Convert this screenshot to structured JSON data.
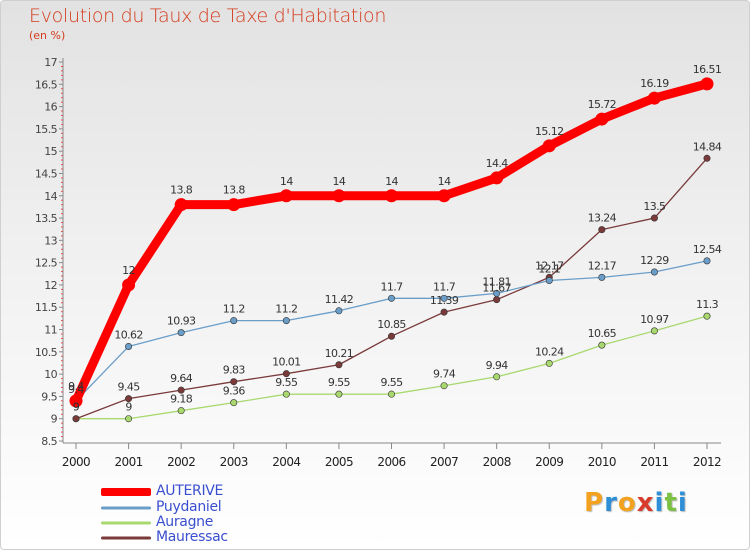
{
  "header": {
    "title": "Evolution du Taux de Taxe d'Habitation",
    "unit": "(en %)"
  },
  "logo": {
    "text": "Proxiti",
    "letters": [
      "P",
      "r",
      "o",
      "x",
      "i",
      "t",
      "i"
    ],
    "letter_colors": [
      "#f2a21e",
      "#2e8fd6",
      "#f2a21e",
      "#d83b2b",
      "#2e8fd6",
      "#7cc142",
      "#2e8fd6"
    ]
  },
  "chart_data": {
    "type": "line",
    "title": "Evolution du Taux de Taxe d'Habitation",
    "ylabel": "(en %)",
    "xlabel": "",
    "x": [
      "2000",
      "2001",
      "2002",
      "2003",
      "2004",
      "2005",
      "2006",
      "2007",
      "2008",
      "2009",
      "2010",
      "2011",
      "2012"
    ],
    "ylim": [
      8.5,
      17
    ],
    "yticks": [
      "8.5",
      "9",
      "9.5",
      "10",
      "10.5",
      "11",
      "11.5",
      "12",
      "12.5",
      "13",
      "13.5",
      "14",
      "14.5",
      "15",
      "15.5",
      "16",
      "16.5",
      "17"
    ],
    "grid": false,
    "legend_position": "bottom-left",
    "series": [
      {
        "name": "AUTERIVE",
        "color": "#ff0000",
        "values": [
          9.4,
          12,
          13.8,
          13.8,
          14,
          14,
          14,
          14,
          14.4,
          15.12,
          15.72,
          16.19,
          16.51
        ],
        "labels": [
          "9.4",
          "12",
          "13.8",
          "13.8",
          "14",
          "14",
          "14",
          "14",
          "14.4",
          "15.12",
          "15.72",
          "16.19",
          "16.51"
        ]
      },
      {
        "name": "Puydaniel",
        "color": "#6a9ec9",
        "values": [
          9.4,
          10.62,
          10.93,
          11.2,
          11.2,
          11.42,
          11.7,
          11.7,
          11.81,
          12.1,
          12.17,
          12.29,
          12.54
        ],
        "labels": [
          "9.4",
          "10.62",
          "10.93",
          "11.2",
          "11.2",
          "11.42",
          "11.7",
          "11.7",
          "11.81",
          "12.1",
          "12.17",
          "12.29",
          "12.54"
        ]
      },
      {
        "name": "Auragne",
        "color": "#a8d86e",
        "values": [
          9,
          9,
          9.18,
          9.36,
          9.55,
          9.55,
          9.55,
          9.74,
          9.94,
          10.24,
          10.65,
          10.97,
          11.3
        ],
        "labels": [
          "9",
          "9",
          "9.18",
          "9.36",
          "9.55",
          "9.55",
          "9.55",
          "9.74",
          "9.94",
          "10.24",
          "10.65",
          "10.97",
          "11.3"
        ]
      },
      {
        "name": "Mauressac",
        "color": "#7a3a3a",
        "values": [
          9,
          9.45,
          9.64,
          9.83,
          10.01,
          10.21,
          10.85,
          11.39,
          11.67,
          12.17,
          13.24,
          13.5,
          14.84
        ],
        "labels": [
          "9",
          "9.45",
          "9.64",
          "9.83",
          "10.01",
          "10.21",
          "10.85",
          "11.39",
          "11.67",
          "12.17",
          "13.24",
          "13.5",
          "14.84"
        ]
      }
    ]
  }
}
